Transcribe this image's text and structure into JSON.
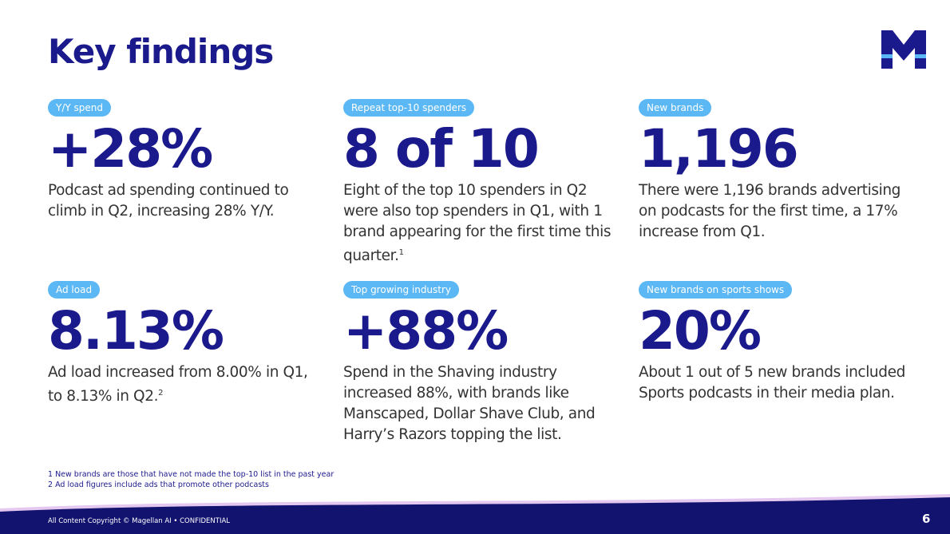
{
  "header": {
    "title": "Key findings"
  },
  "cards": [
    {
      "tag": "Y/Y spend",
      "stat": "+28%",
      "description": "Podcast ad spending continued to climb in Q2, increasing 28% Y/Y."
    },
    {
      "tag": "Repeat top-10 spenders",
      "stat": "8 of 10",
      "description": "Eight of the top 10 spenders in Q2 were also top spenders in Q1, with 1 brand appearing for the first time this quarter.",
      "footnote_ref": "1"
    },
    {
      "tag": "New brands",
      "stat": "1,196",
      "description": "There were 1,196 brands advertising on podcasts for the first time, a 17% increase from Q1."
    },
    {
      "tag": "Ad load",
      "stat": "8.13%",
      "description": "Ad load increased from 8.00% in Q1, to 8.13% in Q2.",
      "footnote_ref": "2"
    },
    {
      "tag": "Top growing industry",
      "stat": "+88%",
      "description": "Spend in the Shaving industry increased 88%, with brands like Manscaped, Dollar Shave Club, and Harry’s Razors topping the list."
    },
    {
      "tag": "New brands on sports shows",
      "stat": "20%",
      "description": "About 1 out of 5 new brands included Sports podcasts in their media plan."
    }
  ],
  "footnotes": [
    "1 New brands are those that have not made the top-10 list in the past year",
    "2 Ad load figures include ads that promote other podcasts"
  ],
  "footer": {
    "copyright": "All Content Copyright © Magellan AI • CONFIDENTIAL",
    "page_number": "6"
  }
}
